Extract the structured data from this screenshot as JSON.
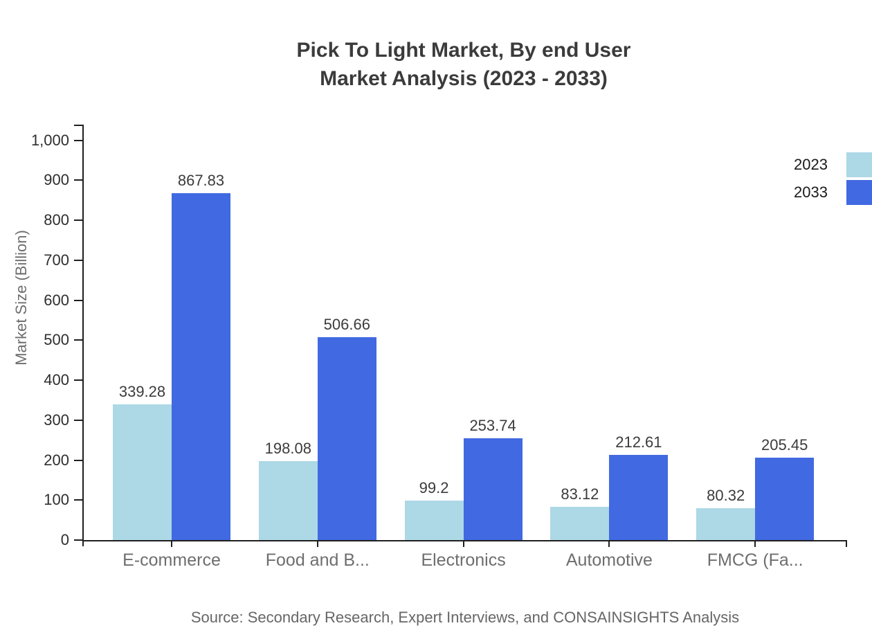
{
  "title": {
    "line1": "Pick To Light Market, By end User",
    "line2": "Market Analysis (2023 - 2033)"
  },
  "y_axis": {
    "title": "Market Size (Billion)",
    "tick_labels": [
      "0",
      "100",
      "200",
      "300",
      "400",
      "500",
      "600",
      "700",
      "800",
      "900",
      "1,000"
    ]
  },
  "legend": {
    "items": [
      {
        "label": "2023",
        "color": "#ADD8E6"
      },
      {
        "label": "2033",
        "color": "#4169E1"
      }
    ]
  },
  "source": "Source: Secondary Research, Expert Interviews, and CONSAINSIGHTS Analysis",
  "colors": {
    "series_2023": "#ADD8E6",
    "series_2033": "#4169E1",
    "axis": "#1f1f1f",
    "title_text": "#3b3b3b",
    "muted_text": "#6e6e6e"
  },
  "chart_data": {
    "type": "bar",
    "title": "Pick To Light Market, By end User Market Analysis (2023 - 2033)",
    "categories": [
      "E-commerce",
      "Food and B...",
      "Electronics",
      "Automotive",
      "FMCG (Fa..."
    ],
    "series": [
      {
        "name": "2023",
        "color": "#ADD8E6",
        "values": [
          339.28,
          198.08,
          99.2,
          83.12,
          80.32
        ]
      },
      {
        "name": "2033",
        "color": "#4169E1",
        "values": [
          867.83,
          506.66,
          253.74,
          212.61,
          205.45
        ]
      }
    ],
    "xlabel": "",
    "ylabel": "Market Size (Billion)",
    "ylim": [
      0,
      1000
    ],
    "y_tick_step": 100,
    "grid": false,
    "legend_position": "top-right",
    "value_labels": true
  }
}
